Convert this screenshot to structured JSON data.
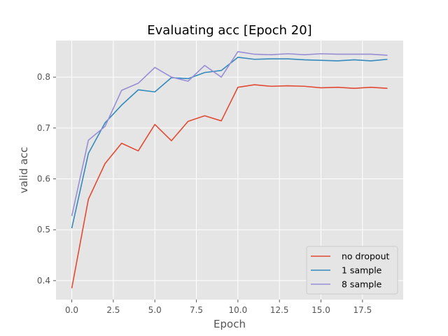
{
  "chart_data": {
    "type": "line",
    "title": "Evaluating acc [Epoch 20]",
    "xlabel": "Epoch",
    "ylabel": "valid acc",
    "xlim": [
      -0.95,
      19.95
    ],
    "ylim": [
      0.3627,
      0.8718
    ],
    "xticks": [
      0,
      2.5,
      5,
      7.5,
      10,
      12.5,
      15,
      17.5
    ],
    "xtick_labels": [
      "0.0",
      "2.5",
      "5.0",
      "7.5",
      "10.0",
      "12.5",
      "15.0",
      "17.5"
    ],
    "yticks": [
      0.4,
      0.5,
      0.6,
      0.7,
      0.8
    ],
    "ytick_labels": [
      "0.4",
      "0.5",
      "0.6",
      "0.7",
      "0.8"
    ],
    "grid": true,
    "legend_position": "lower right",
    "background_color": "#e5e5e5",
    "x": [
      0,
      1,
      2,
      3,
      4,
      5,
      6,
      7,
      8,
      9,
      10,
      11,
      12,
      13,
      14,
      15,
      16,
      17,
      18,
      19
    ],
    "series": [
      {
        "name": "no dropout",
        "color": "#e24a33",
        "values": [
          0.385,
          0.56,
          0.63,
          0.67,
          0.655,
          0.707,
          0.675,
          0.713,
          0.724,
          0.714,
          0.78,
          0.785,
          0.782,
          0.783,
          0.782,
          0.779,
          0.78,
          0.778,
          0.78,
          0.778
        ]
      },
      {
        "name": "1 sample",
        "color": "#348abd",
        "values": [
          0.503,
          0.65,
          0.71,
          0.745,
          0.775,
          0.771,
          0.799,
          0.797,
          0.809,
          0.813,
          0.839,
          0.835,
          0.836,
          0.836,
          0.834,
          0.833,
          0.832,
          0.834,
          0.832,
          0.835
        ]
      },
      {
        "name": "8 sample",
        "color": "#988ed5",
        "values": [
          0.527,
          0.676,
          0.703,
          0.774,
          0.788,
          0.819,
          0.8,
          0.792,
          0.823,
          0.8,
          0.85,
          0.845,
          0.844,
          0.846,
          0.844,
          0.846,
          0.845,
          0.845,
          0.845,
          0.843
        ]
      }
    ]
  }
}
